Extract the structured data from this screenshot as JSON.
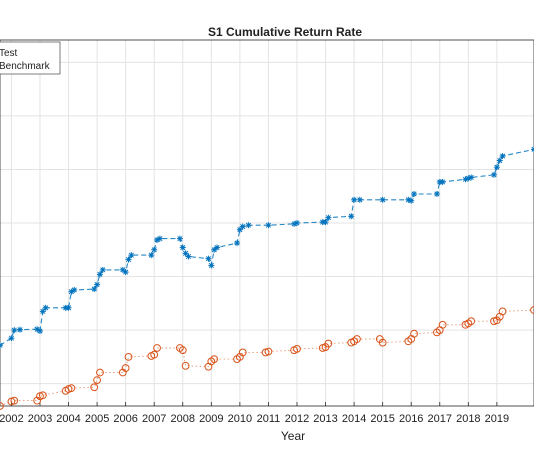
{
  "chart_data": {
    "type": "line",
    "title": "S1 Cumulative Return Rate",
    "xlabel": "Year",
    "ylabel": "",
    "x_ticks": [
      "2002",
      "2003",
      "2004",
      "2005",
      "2006",
      "2007",
      "2008",
      "2009",
      "2010",
      "2011",
      "2012",
      "2013",
      "2014",
      "2015",
      "2016",
      "2017",
      "2018",
      "2019"
    ],
    "xlim": [
      2001.6,
      2020.3
    ],
    "ylim": [
      0.0,
      8.2
    ],
    "grid": true,
    "legend": "top-left",
    "series": [
      {
        "name": "Test",
        "color": "#0072BD",
        "marker": "asterisk",
        "line": "dashed",
        "x": [
          2001.6,
          2002.0,
          2002.1,
          2002.3,
          2002.9,
          2003.0,
          2003.1,
          2003.2,
          2003.9,
          2004.0,
          2004.1,
          2004.2,
          2004.9,
          2005.0,
          2005.1,
          2005.2,
          2005.9,
          2006.0,
          2006.1,
          2006.2,
          2006.9,
          2007.0,
          2007.1,
          2007.2,
          2007.9,
          2008.0,
          2008.1,
          2008.2,
          2008.9,
          2009.0,
          2009.1,
          2009.2,
          2009.9,
          2010.0,
          2010.1,
          2010.3,
          2011.0,
          2011.9,
          2012.0,
          2012.9,
          2013.0,
          2013.1,
          2013.9,
          2014.0,
          2014.2,
          2015.0,
          2015.9,
          2016.0,
          2016.1,
          2016.9,
          2017.0,
          2017.1,
          2017.9,
          2018.0,
          2018.1,
          2018.9,
          2019.0,
          2019.1,
          2019.2,
          2020.3
        ],
        "values": [
          1.36,
          1.52,
          1.7,
          1.71,
          1.72,
          1.68,
          2.12,
          2.2,
          2.2,
          2.2,
          2.56,
          2.6,
          2.62,
          2.72,
          2.95,
          3.05,
          3.05,
          3.0,
          3.28,
          3.38,
          3.38,
          3.5,
          3.72,
          3.75,
          3.75,
          3.55,
          3.42,
          3.35,
          3.3,
          3.15,
          3.5,
          3.55,
          3.65,
          3.95,
          4.02,
          4.05,
          4.05,
          4.08,
          4.1,
          4.12,
          4.12,
          4.22,
          4.25,
          4.62,
          4.62,
          4.62,
          4.62,
          4.6,
          4.75,
          4.75,
          5.02,
          5.02,
          5.08,
          5.1,
          5.12,
          5.18,
          5.35,
          5.5,
          5.6,
          5.75
        ]
      },
      {
        "name": "Benchmark",
        "color": "#D95319",
        "marker": "circle",
        "line": "dotted",
        "x": [
          2001.6,
          2002.0,
          2002.1,
          2002.9,
          2003.0,
          2003.1,
          2003.9,
          2004.0,
          2004.1,
          2004.9,
          2005.0,
          2005.1,
          2005.9,
          2006.0,
          2006.1,
          2006.9,
          2007.0,
          2007.1,
          2007.9,
          2008.0,
          2008.1,
          2008.9,
          2009.0,
          2009.1,
          2009.9,
          2010.0,
          2010.1,
          2010.9,
          2011.0,
          2011.9,
          2012.0,
          2012.9,
          2013.0,
          2013.1,
          2013.9,
          2014.0,
          2014.1,
          2014.9,
          2015.0,
          2015.9,
          2016.0,
          2016.1,
          2016.9,
          2017.0,
          2017.1,
          2017.9,
          2018.0,
          2018.1,
          2018.9,
          2019.0,
          2019.1,
          2019.2,
          2020.3
        ],
        "values": [
          0.0,
          0.1,
          0.12,
          0.12,
          0.22,
          0.24,
          0.34,
          0.38,
          0.4,
          0.42,
          0.58,
          0.75,
          0.75,
          0.85,
          1.1,
          1.12,
          1.15,
          1.3,
          1.3,
          1.25,
          0.9,
          0.88,
          1.0,
          1.05,
          1.05,
          1.1,
          1.2,
          1.2,
          1.22,
          1.25,
          1.28,
          1.3,
          1.32,
          1.4,
          1.42,
          1.45,
          1.5,
          1.5,
          1.42,
          1.45,
          1.5,
          1.62,
          1.65,
          1.7,
          1.82,
          1.82,
          1.85,
          1.9,
          1.9,
          1.92,
          2.0,
          2.12,
          2.15
        ]
      }
    ]
  }
}
